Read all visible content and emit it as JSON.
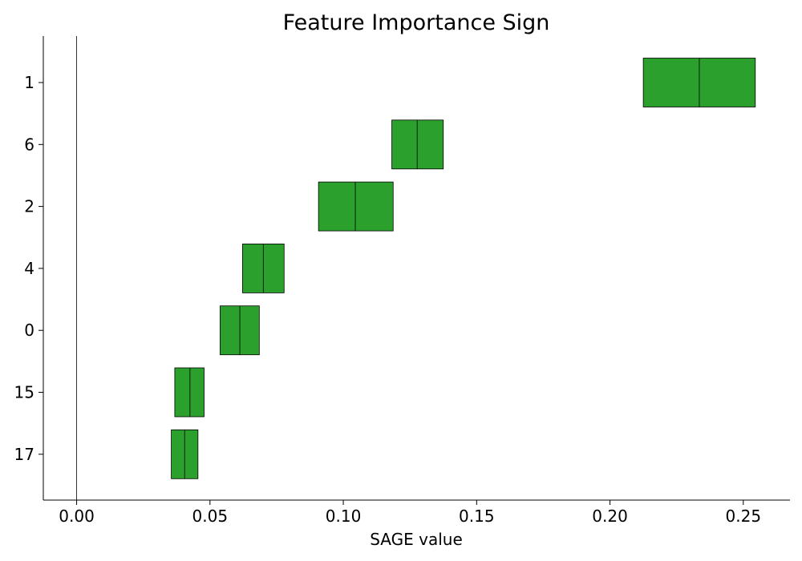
{
  "chart_data": {
    "type": "bar",
    "title": "Feature Importance Sign",
    "xlabel": "SAGE value",
    "ylabel": "",
    "xlim": [
      -0.0125,
      0.2675
    ],
    "x_ticks": [
      "0.00",
      "0.05",
      "0.10",
      "0.15",
      "0.20",
      "0.25"
    ],
    "x_tick_values": [
      0.0,
      0.05,
      0.1,
      0.15,
      0.2,
      0.25
    ],
    "categories": [
      "1",
      "6",
      "2",
      "4",
      "0",
      "15",
      "17"
    ],
    "series": [
      {
        "values": [
          0.2335,
          0.1277,
          0.1045,
          0.07,
          0.0612,
          0.0425,
          0.0405
        ],
        "lower": [
          0.2125,
          0.1182,
          0.0907,
          0.0622,
          0.0538,
          0.0368,
          0.0355
        ],
        "upper": [
          0.2545,
          0.1375,
          0.1187,
          0.0778,
          0.0685,
          0.0478,
          0.0455
        ]
      }
    ],
    "bar_color": "#2ca02c",
    "zero_line": true,
    "grid": false
  }
}
